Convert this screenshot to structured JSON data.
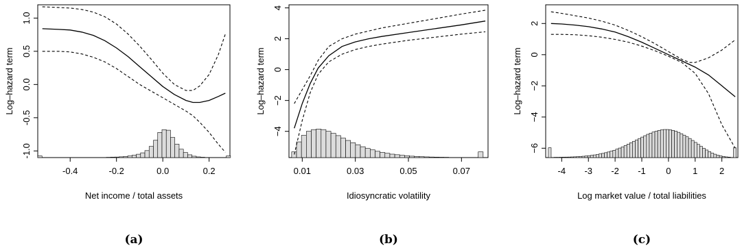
{
  "colors": {
    "line": "#000000",
    "bar_fill": "#dcdcdc",
    "background": "#ffffff"
  },
  "chart_data": [
    {
      "type": "line",
      "caption": "(a)",
      "xlabel": "Net income / total assets",
      "ylabel": "Log–hazard term",
      "xlim": [
        -0.54,
        0.29
      ],
      "ylim": [
        -1.1,
        1.2
      ],
      "x_ticks": [
        -0.4,
        -0.2,
        0.0,
        0.2
      ],
      "x_tick_labels": [
        "-0.4",
        "-0.2",
        "0.0",
        "0.2"
      ],
      "y_ticks": [
        -1.0,
        -0.5,
        0.0,
        0.5,
        1.0
      ],
      "y_tick_labels": [
        "-1.0",
        "-0.5",
        "0.0",
        "0.5",
        "1.0"
      ],
      "grid": false,
      "series": [
        {
          "role": "estimate",
          "style": "solid",
          "x": [
            -0.52,
            -0.45,
            -0.4,
            -0.35,
            -0.3,
            -0.25,
            -0.2,
            -0.15,
            -0.1,
            -0.05,
            0.0,
            0.05,
            0.1,
            0.13,
            0.16,
            0.2,
            0.24,
            0.27
          ],
          "y": [
            0.84,
            0.83,
            0.82,
            0.79,
            0.74,
            0.66,
            0.55,
            0.42,
            0.27,
            0.12,
            -0.03,
            -0.15,
            -0.24,
            -0.27,
            -0.27,
            -0.24,
            -0.18,
            -0.13
          ]
        },
        {
          "role": "upper band",
          "style": "dashed",
          "x": [
            -0.52,
            -0.45,
            -0.4,
            -0.35,
            -0.3,
            -0.25,
            -0.2,
            -0.15,
            -0.1,
            -0.05,
            0.0,
            0.05,
            0.1,
            0.13,
            0.16,
            0.2,
            0.24,
            0.27
          ],
          "y": [
            1.17,
            1.16,
            1.15,
            1.13,
            1.09,
            1.02,
            0.91,
            0.76,
            0.58,
            0.38,
            0.17,
            0.0,
            -0.09,
            -0.09,
            -0.02,
            0.15,
            0.45,
            0.76
          ]
        },
        {
          "role": "lower band",
          "style": "dashed",
          "x": [
            -0.52,
            -0.45,
            -0.4,
            -0.35,
            -0.3,
            -0.25,
            -0.2,
            -0.15,
            -0.1,
            -0.05,
            0.0,
            0.05,
            0.1,
            0.13,
            0.16,
            0.2,
            0.24,
            0.27
          ],
          "y": [
            0.5,
            0.5,
            0.49,
            0.46,
            0.41,
            0.34,
            0.24,
            0.12,
            0.0,
            -0.1,
            -0.2,
            -0.3,
            -0.4,
            -0.47,
            -0.57,
            -0.72,
            -0.9,
            -1.02
          ]
        }
      ],
      "histogram": {
        "base": -1.1,
        "bin_start": -0.54,
        "bin_width": 0.0185,
        "counts_relative": [
          0.06,
          0,
          0,
          0,
          0,
          0,
          0,
          0,
          0,
          0,
          0,
          0,
          0,
          0,
          0.005,
          0.008,
          0.01,
          0.015,
          0.02,
          0.028,
          0.04,
          0.06,
          0.085,
          0.12,
          0.17,
          0.25,
          0.4,
          0.62,
          0.9,
          1.0,
          0.98,
          0.72,
          0.48,
          0.3,
          0.18,
          0.1,
          0.05,
          0.025,
          0.012,
          0.006,
          0.003,
          0.002,
          0,
          0.0,
          0.06
        ],
        "max_height": 0.42
      }
    },
    {
      "type": "line",
      "caption": "(b)",
      "xlabel": "Idiosyncratic volatility",
      "ylabel": "Log–hazard term",
      "xlim": [
        0.005,
        0.08
      ],
      "ylim": [
        -5.7,
        4.2
      ],
      "x_ticks": [
        0.01,
        0.03,
        0.05,
        0.07
      ],
      "x_tick_labels": [
        "0.01",
        "0.03",
        "0.05",
        "0.07"
      ],
      "y_ticks": [
        -4,
        -2,
        0,
        2,
        4
      ],
      "y_tick_labels": [
        "−4",
        "−2",
        "0",
        "2",
        "4"
      ],
      "grid": false,
      "series": [
        {
          "role": "estimate",
          "style": "solid",
          "x": [
            0.007,
            0.01,
            0.013,
            0.016,
            0.02,
            0.025,
            0.03,
            0.035,
            0.04,
            0.05,
            0.06,
            0.07,
            0.079
          ],
          "y": [
            -3.8,
            -2.2,
            -0.9,
            0.1,
            0.9,
            1.5,
            1.8,
            2.0,
            2.15,
            2.4,
            2.65,
            2.9,
            3.15
          ]
        },
        {
          "role": "upper band",
          "style": "dashed",
          "x": [
            0.007,
            0.01,
            0.013,
            0.016,
            0.02,
            0.025,
            0.03,
            0.035,
            0.04,
            0.05,
            0.06,
            0.07,
            0.079
          ],
          "y": [
            -2.2,
            -1.3,
            -0.4,
            0.6,
            1.5,
            2.0,
            2.3,
            2.5,
            2.7,
            3.0,
            3.3,
            3.6,
            3.85
          ]
        },
        {
          "role": "lower band",
          "style": "dashed",
          "x": [
            0.007,
            0.01,
            0.013,
            0.016,
            0.02,
            0.025,
            0.03,
            0.035,
            0.04,
            0.05,
            0.06,
            0.07,
            0.079
          ],
          "y": [
            -5.5,
            -3.3,
            -1.5,
            -0.3,
            0.5,
            1.0,
            1.3,
            1.5,
            1.65,
            1.9,
            2.1,
            2.3,
            2.45
          ]
        }
      ],
      "histogram": {
        "base": -5.7,
        "bin_start": 0.006,
        "bin_width": 0.00185,
        "counts_relative": [
          0.2,
          0.55,
          0.78,
          0.92,
          0.98,
          1.0,
          0.98,
          0.92,
          0.85,
          0.77,
          0.68,
          0.6,
          0.52,
          0.45,
          0.38,
          0.32,
          0.27,
          0.22,
          0.18,
          0.15,
          0.12,
          0.1,
          0.08,
          0.065,
          0.05,
          0.04,
          0.032,
          0.025,
          0.02,
          0.016,
          0.012,
          0.01,
          0.008,
          0.006,
          0.005,
          0.004,
          0.003,
          0.002,
          0.2
        ],
        "max_height": 1.85
      }
    },
    {
      "type": "line",
      "caption": "(c)",
      "xlabel": "Log market value / total liabilities",
      "ylabel": "Log–hazard term",
      "xlim": [
        -4.6,
        2.6
      ],
      "ylim": [
        -6.6,
        3.2
      ],
      "x_ticks": [
        -4,
        -3,
        -2,
        -1,
        0,
        1,
        2
      ],
      "x_tick_labels": [
        "-4",
        "-3",
        "-2",
        "-1",
        "0",
        "1",
        "2"
      ],
      "y_ticks": [
        -6,
        -4,
        -2,
        0,
        2
      ],
      "y_tick_labels": [
        "−6",
        "−4",
        "−2",
        "0",
        "2"
      ],
      "grid": false,
      "series": [
        {
          "role": "estimate",
          "style": "solid",
          "x": [
            -4.4,
            -4.0,
            -3.5,
            -3.0,
            -2.5,
            -2.0,
            -1.5,
            -1.0,
            -0.5,
            0.0,
            0.5,
            1.0,
            1.5,
            2.0,
            2.5
          ],
          "y": [
            2.0,
            1.97,
            1.9,
            1.8,
            1.65,
            1.45,
            1.15,
            0.8,
            0.4,
            0.0,
            -0.4,
            -0.8,
            -1.3,
            -2.0,
            -2.7
          ]
        },
        {
          "role": "upper band",
          "style": "dashed",
          "x": [
            -4.4,
            -4.0,
            -3.5,
            -3.0,
            -2.5,
            -2.0,
            -1.5,
            -1.0,
            -0.5,
            0.0,
            0.5,
            0.8,
            1.0,
            1.5,
            2.0,
            2.5
          ],
          "y": [
            2.75,
            2.65,
            2.5,
            2.35,
            2.15,
            1.9,
            1.55,
            1.15,
            0.7,
            0.2,
            -0.3,
            -0.5,
            -0.5,
            -0.2,
            0.3,
            0.95
          ]
        },
        {
          "role": "lower band",
          "style": "dashed",
          "x": [
            -4.4,
            -4.0,
            -3.5,
            -3.0,
            -2.5,
            -2.0,
            -1.5,
            -1.0,
            -0.5,
            0.0,
            0.5,
            1.0,
            1.5,
            2.0,
            2.5
          ],
          "y": [
            1.3,
            1.3,
            1.28,
            1.22,
            1.12,
            0.98,
            0.8,
            0.55,
            0.25,
            -0.1,
            -0.5,
            -1.2,
            -2.5,
            -4.5,
            -6.0
          ]
        }
      ],
      "histogram": {
        "base": -6.6,
        "bin_start": -4.5,
        "bin_width": 0.105,
        "counts_relative": [
          0.35,
          0,
          0.01,
          0.01,
          0.012,
          0.015,
          0.018,
          0.02,
          0.024,
          0.028,
          0.033,
          0.04,
          0.048,
          0.057,
          0.068,
          0.08,
          0.095,
          0.11,
          0.13,
          0.15,
          0.175,
          0.2,
          0.23,
          0.26,
          0.3,
          0.34,
          0.38,
          0.43,
          0.48,
          0.53,
          0.58,
          0.63,
          0.68,
          0.73,
          0.78,
          0.83,
          0.87,
          0.91,
          0.94,
          0.97,
          0.99,
          1.0,
          1.0,
          0.99,
          0.97,
          0.94,
          0.9,
          0.85,
          0.8,
          0.74,
          0.68,
          0.61,
          0.54,
          0.47,
          0.4,
          0.33,
          0.27,
          0.21,
          0.16,
          0.12,
          0.085,
          0.06,
          0.04,
          0.025,
          0.015,
          0.008,
          0.35
        ],
        "max_height": 1.8
      }
    }
  ]
}
